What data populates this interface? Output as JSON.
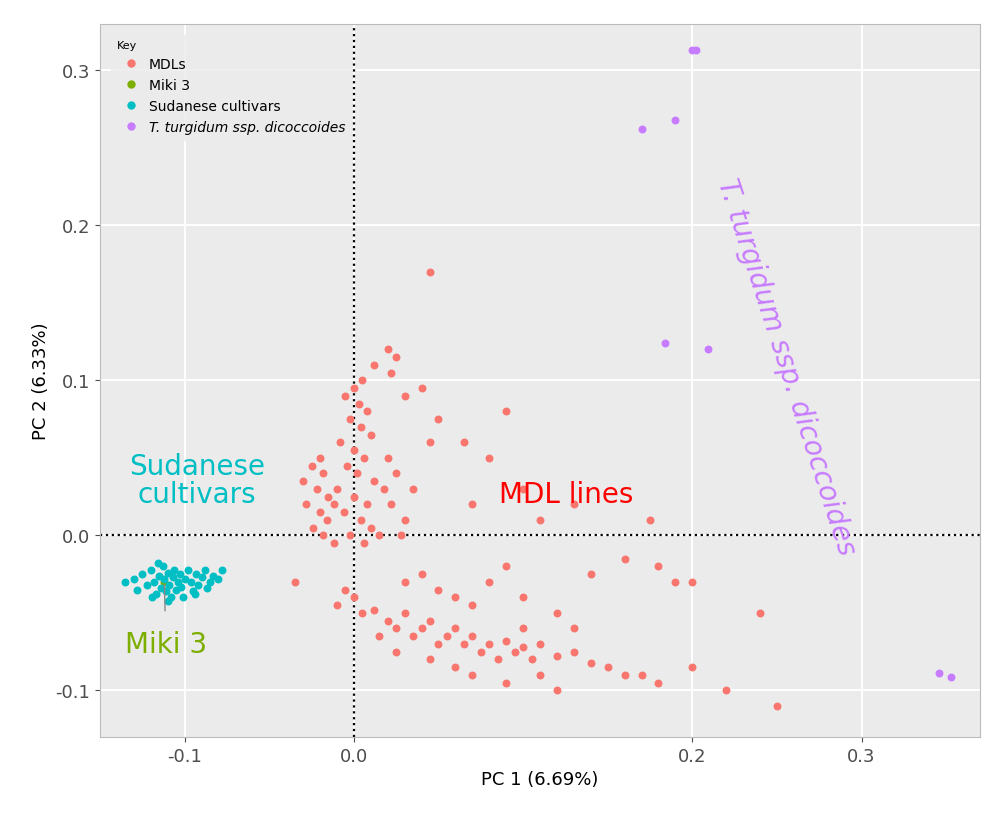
{
  "chart_data": {
    "type": "scatter",
    "x_label": "PC 1 (6.69%)",
    "y_label": "PC 2 (6.33%)",
    "xlim": [
      -0.15,
      0.37
    ],
    "ylim": [
      -0.13,
      0.33
    ],
    "xticks": [
      -0.1,
      0.0,
      0.2,
      0.3
    ],
    "yticks": [
      -0.1,
      0.0,
      0.1,
      0.2,
      0.3
    ],
    "grid": true,
    "legend": "upper left",
    "legend_title": "Key",
    "reference_lines": {
      "x": 0.0,
      "y": 0.0
    },
    "marker": "o",
    "series": [
      {
        "name": "MDLs",
        "color": "#F8766D",
        "x": [
          0.005,
          0.0,
          -0.005,
          0.003,
          0.008,
          -0.002,
          0.004,
          0.01,
          -0.008,
          0.0,
          0.006,
          -0.004,
          0.002,
          0.012,
          -0.01,
          0.0,
          0.008,
          -0.006,
          0.004,
          0.01,
          -0.002,
          0.006,
          -0.012,
          0.015,
          -0.02,
          -0.025,
          -0.018,
          -0.03,
          -0.022,
          -0.015,
          -0.028,
          -0.02,
          -0.016,
          -0.024,
          -0.018,
          -0.012,
          0.02,
          0.025,
          0.018,
          0.022,
          0.03,
          0.028,
          0.035,
          0.02,
          0.025,
          0.022,
          0.03,
          0.05,
          0.045,
          0.065,
          0.08,
          0.09,
          0.1,
          0.07,
          0.045,
          0.04,
          0.012,
          0.0,
          -0.01,
          0.005,
          0.012,
          0.02,
          0.025,
          0.03,
          0.035,
          0.04,
          0.045,
          0.05,
          0.055,
          0.06,
          0.065,
          0.07,
          0.075,
          0.08,
          0.085,
          0.09,
          0.095,
          0.1,
          0.105,
          0.11,
          0.12,
          0.13,
          0.14,
          0.15,
          0.16,
          0.17,
          0.18,
          0.2,
          0.22,
          0.25,
          0.24,
          0.03,
          0.04,
          0.05,
          0.06,
          0.07,
          0.08,
          0.09,
          0.1,
          0.12,
          0.14,
          0.16,
          0.18,
          0.19,
          0.2,
          0.175,
          0.13,
          0.015,
          0.025,
          0.045,
          0.06,
          0.07,
          0.09,
          0.1,
          0.11,
          0.12,
          -0.035,
          -0.005,
          0.11,
          0.13
        ],
        "values": [
          0.1,
          0.095,
          0.09,
          0.085,
          0.08,
          0.075,
          0.07,
          0.065,
          0.06,
          0.055,
          0.05,
          0.045,
          0.04,
          0.035,
          0.03,
          0.025,
          0.02,
          0.015,
          0.01,
          0.005,
          0.0,
          -0.005,
          -0.005,
          0.0,
          0.05,
          0.045,
          0.04,
          0.035,
          0.03,
          0.025,
          0.02,
          0.015,
          0.01,
          0.005,
          0.0,
          0.02,
          0.05,
          0.04,
          0.03,
          0.02,
          0.01,
          0.0,
          0.03,
          0.12,
          0.115,
          0.105,
          0.09,
          0.075,
          0.17,
          0.06,
          0.05,
          0.08,
          0.03,
          0.02,
          0.06,
          0.095,
          0.11,
          -0.04,
          -0.045,
          -0.05,
          -0.048,
          -0.055,
          -0.06,
          -0.05,
          -0.065,
          -0.06,
          -0.055,
          -0.07,
          -0.065,
          -0.06,
          -0.07,
          -0.065,
          -0.075,
          -0.07,
          -0.08,
          -0.068,
          -0.075,
          -0.072,
          -0.08,
          -0.07,
          -0.078,
          -0.075,
          -0.082,
          -0.085,
          -0.09,
          -0.09,
          -0.095,
          -0.085,
          -0.1,
          -0.11,
          -0.05,
          -0.03,
          -0.025,
          -0.035,
          -0.04,
          -0.045,
          -0.03,
          -0.02,
          -0.04,
          -0.05,
          -0.025,
          -0.015,
          -0.02,
          -0.03,
          -0.03,
          0.01,
          0.02,
          -0.065,
          -0.075,
          -0.08,
          -0.085,
          -0.09,
          -0.095,
          -0.06,
          -0.09,
          -0.1,
          -0.03,
          -0.035,
          0.01,
          -0.06
        ]
      },
      {
        "name": "Miki 3",
        "color": "#7CAE00",
        "x": [
          -0.112
        ],
        "values": [
          -0.03
        ]
      },
      {
        "name": "Sudanese cultivars",
        "color": "#00BFC4",
        "x": [
          -0.135,
          -0.13,
          -0.128,
          -0.125,
          -0.122,
          -0.12,
          -0.118,
          -0.117,
          -0.115,
          -0.114,
          -0.113,
          -0.112,
          -0.111,
          -0.11,
          -0.109,
          -0.108,
          -0.107,
          -0.106,
          -0.105,
          -0.104,
          -0.103,
          -0.102,
          -0.1,
          -0.098,
          -0.096,
          -0.095,
          -0.093,
          -0.092,
          -0.09,
          -0.088,
          -0.087,
          -0.085,
          -0.083,
          -0.08,
          -0.078,
          -0.119,
          -0.116,
          -0.11,
          -0.101,
          -0.094
        ],
        "values": [
          -0.03,
          -0.028,
          -0.035,
          -0.025,
          -0.032,
          -0.022,
          -0.03,
          -0.038,
          -0.026,
          -0.034,
          -0.02,
          -0.028,
          -0.036,
          -0.024,
          -0.032,
          -0.04,
          -0.027,
          -0.022,
          -0.035,
          -0.03,
          -0.025,
          -0.033,
          -0.028,
          -0.022,
          -0.03,
          -0.036,
          -0.025,
          -0.032,
          -0.027,
          -0.022,
          -0.034,
          -0.03,
          -0.026,
          -0.028,
          -0.022,
          -0.04,
          -0.018,
          -0.042,
          -0.04,
          -0.038
        ]
      },
      {
        "name": "T. turgidum ssp. dicoccoides",
        "color": "#C77CFF",
        "x": [
          0.2,
          0.202,
          0.17,
          0.19,
          0.184,
          0.209,
          0.346,
          0.353
        ],
        "values": [
          0.313,
          0.313,
          0.262,
          0.268,
          0.124,
          0.12,
          -0.089,
          -0.091
        ]
      }
    ],
    "annotations": [
      {
        "text": "Sudanese\ncultivars",
        "color": "#00BFC4"
      },
      {
        "text": "Miki 3",
        "color": "#7CAE00",
        "series": "Miki 3"
      },
      {
        "text": "MDL lines",
        "color": "#FF0000"
      },
      {
        "text": "T. turgidum ssp. dicoccoides",
        "color": "#C77CFF"
      }
    ]
  }
}
